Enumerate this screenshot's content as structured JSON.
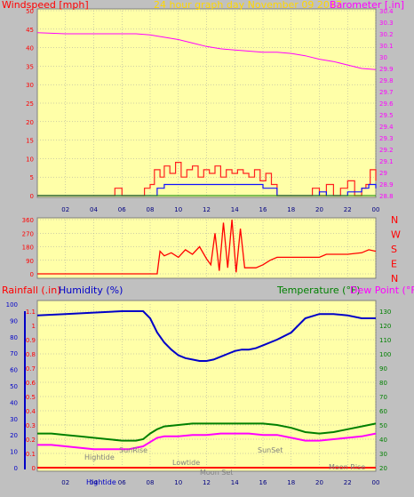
{
  "header": {
    "windspeed_label": "Windspeed [mph]",
    "title": "24 hour graph day   November 09 2017",
    "barometer_label": "Barometer [.in]"
  },
  "colors": {
    "panel_bg": "#ffffa8",
    "page_bg": "#c0c0c0",
    "grid": "#a0a0a0",
    "wind_left_axis": "#ff0000",
    "barometer": "#ff00ff",
    "title": "#ffd700",
    "direction": "#ff0000",
    "wind_gust": "#ff2020",
    "wind_avg": "#1010ff",
    "wind_low": "#008000",
    "humidity": "#0000c8",
    "rainfall": "#ff0000",
    "temperature": "#008000",
    "dewpoint": "#ff00ff"
  },
  "x_ticks": [
    "02",
    "04",
    "06",
    "08",
    "10",
    "12",
    "14",
    "16",
    "18",
    "20",
    "22",
    "00"
  ],
  "direction_labels": [
    "N",
    "W",
    "S",
    "E",
    "N"
  ],
  "bottom_header": {
    "rainfall_label": "Rainfall (.in)",
    "humidity_label": "Humidity (%)",
    "temperature_label": "Temperature (°F)",
    "dewpoint_label": "Dew Point (°F)"
  },
  "events": {
    "hightide_1": "Hightide",
    "hightide_2": "Hightide",
    "sunrise": "SunRise",
    "lowtide": "Lowtide",
    "sunset": "SunSet",
    "moonset": "Moon Set",
    "moonrise": "Moon Rise"
  },
  "chart_data": [
    {
      "type": "line",
      "name": "windspeed-barometer",
      "x_range": [
        0,
        24
      ],
      "y_left_ticks": [
        "0",
        "5",
        "10",
        "15",
        "20",
        "25",
        "30",
        "35",
        "40",
        "45",
        "50"
      ],
      "y_left_range": [
        0,
        50
      ],
      "y_right_ticks": [
        "28.8",
        "28.9",
        "29",
        "29.1",
        "29.2",
        "29.3",
        "29.4",
        "29.5",
        "29.6",
        "29.7",
        "29.8",
        "29.9",
        "30",
        "30.1",
        "30.2",
        "30.3",
        "30.4"
      ],
      "y_right_range": [
        28.8,
        30.4
      ],
      "barometer_series": {
        "x": [
          0,
          2,
          4,
          6,
          7,
          8,
          9,
          10,
          11,
          12,
          13,
          14,
          15,
          16,
          17,
          18,
          19,
          20,
          21,
          22,
          23,
          24
        ],
        "y": [
          30.21,
          30.2,
          30.2,
          30.2,
          30.2,
          30.19,
          30.17,
          30.15,
          30.12,
          30.09,
          30.07,
          30.06,
          30.05,
          30.04,
          30.04,
          30.03,
          30.01,
          29.98,
          29.96,
          29.93,
          29.9,
          29.89
        ]
      },
      "wind_gust": {
        "x": [
          0,
          5,
          5.5,
          6,
          7.3,
          7.6,
          8,
          8.3,
          8.7,
          9,
          9.4,
          9.8,
          10.2,
          10.6,
          11,
          11.4,
          11.8,
          12.2,
          12.6,
          13,
          13.4,
          13.8,
          14.2,
          14.6,
          15,
          15.4,
          15.8,
          16.2,
          16.6,
          17,
          19,
          19.5,
          20,
          20.5,
          21,
          21.5,
          22,
          22.5,
          23,
          23.3,
          23.6,
          24
        ],
        "y": [
          0,
          0,
          2,
          0,
          0,
          2,
          3,
          7,
          5,
          8,
          6,
          9,
          5,
          7,
          8,
          5,
          7,
          6,
          8,
          5,
          7,
          6,
          7,
          6,
          5,
          7,
          4,
          6,
          3,
          0,
          0,
          2,
          0,
          3,
          0,
          2,
          4,
          0,
          2,
          3,
          7,
          4
        ]
      },
      "wind_avg": {
        "x": [
          0,
          8,
          8.5,
          9,
          10,
          11,
          12,
          13,
          14,
          15,
          16,
          16.5,
          17,
          19.5,
          20,
          20.5,
          22,
          23,
          23.5,
          24
        ],
        "y": [
          0,
          0,
          2,
          3,
          3,
          3,
          3,
          3,
          3,
          3,
          2,
          2,
          0,
          0,
          1,
          0,
          1,
          2,
          3,
          2
        ]
      }
    },
    {
      "type": "line",
      "name": "wind-direction",
      "x_range": [
        0,
        24
      ],
      "y_ticks": [
        "0",
        "90",
        "180",
        "270",
        "360"
      ],
      "y_range": [
        0,
        360
      ],
      "series": {
        "x": [
          0,
          8.5,
          8.7,
          9,
          9.5,
          10,
          10.5,
          11,
          11.5,
          12,
          12.3,
          12.6,
          12.9,
          13.2,
          13.5,
          13.8,
          14.1,
          14.4,
          14.7,
          15,
          15.5,
          16,
          16.5,
          17,
          18,
          19,
          20,
          20.5,
          21,
          22,
          23,
          23.5,
          24
        ],
        "y": [
          0,
          0,
          150,
          120,
          140,
          110,
          160,
          130,
          180,
          100,
          60,
          270,
          20,
          340,
          40,
          360,
          10,
          300,
          40,
          40,
          40,
          60,
          90,
          110,
          110,
          110,
          110,
          130,
          130,
          130,
          140,
          160,
          150
        ]
      }
    },
    {
      "type": "line",
      "name": "humidity-temperature",
      "x_range": [
        0,
        24
      ],
      "y_left_ticks": [
        "0",
        "0.1",
        "0.2",
        "0.3",
        "0.4",
        "0.5",
        "0.6",
        "0.7",
        "0.8",
        "0.9",
        "1",
        "1.1"
      ],
      "y_left_range": [
        0,
        1.15
      ],
      "y_left_outer_ticks": [
        "0",
        "10",
        "20",
        "30",
        "40",
        "50",
        "60",
        "70",
        "80",
        "90",
        "100"
      ],
      "y_right_ticks": [
        "20",
        "30",
        "40",
        "50",
        "60",
        "70",
        "80",
        "90",
        "100",
        "110",
        "120",
        "130"
      ],
      "y_right_range": [
        20,
        135
      ],
      "humidity": {
        "x": [
          0,
          2,
          4,
          6,
          7,
          7.5,
          8,
          8.5,
          9,
          9.5,
          10,
          10.5,
          11,
          11.5,
          12,
          12.5,
          13,
          13.5,
          14,
          14.5,
          15,
          15.5,
          16,
          17,
          18,
          18.5,
          19,
          20,
          21,
          22,
          23,
          24
        ],
        "y": [
          1.07,
          1.08,
          1.09,
          1.1,
          1.1,
          1.1,
          1.05,
          0.95,
          0.88,
          0.83,
          0.79,
          0.77,
          0.76,
          0.75,
          0.75,
          0.76,
          0.78,
          0.8,
          0.82,
          0.83,
          0.83,
          0.84,
          0.86,
          0.9,
          0.95,
          1.0,
          1.05,
          1.08,
          1.08,
          1.07,
          1.05,
          1.05
        ]
      },
      "temperature": {
        "x": [
          0,
          1,
          2,
          3,
          4,
          5,
          6,
          6.5,
          7,
          7.5,
          8,
          8.5,
          9,
          10,
          11,
          12,
          13,
          14,
          15,
          16,
          17,
          18,
          19,
          20,
          21,
          22,
          23,
          24
        ],
        "y": [
          44,
          44,
          43,
          42,
          41,
          40,
          39,
          39,
          39,
          40,
          44,
          47,
          49,
          50,
          51,
          51,
          51,
          51,
          51,
          51,
          50,
          48,
          45,
          44,
          45,
          47,
          49,
          51
        ]
      },
      "dewpoint": {
        "x": [
          0,
          1,
          2,
          3,
          4,
          5,
          6,
          6.5,
          7,
          7.5,
          8,
          8.5,
          9,
          10,
          11,
          12,
          13,
          14,
          15,
          16,
          17,
          18,
          19,
          20,
          21,
          22,
          23,
          24
        ],
        "y": [
          36,
          36,
          35,
          34,
          33,
          33,
          33,
          33,
          34,
          35,
          38,
          41,
          42,
          42,
          43,
          43,
          44,
          44,
          44,
          43,
          43,
          41,
          39,
          39,
          40,
          41,
          42,
          44
        ]
      },
      "rainfall": {
        "x": [
          0,
          24
        ],
        "y": [
          0,
          0
        ]
      }
    }
  ]
}
